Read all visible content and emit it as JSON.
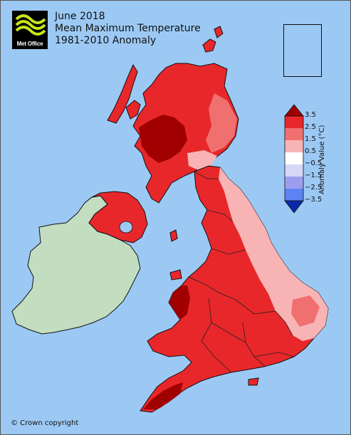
{
  "title": {
    "line1": "June 2018",
    "line2": "Mean Maximum Temperature",
    "line3": "1981-2010 Anomaly"
  },
  "logo": {
    "text": "Met Office",
    "icon": "met-office-wave-logo"
  },
  "legend": {
    "title": "Anomaly Value (°C)",
    "ticks": [
      "3.5",
      "2.5",
      "1.5",
      "0.5",
      "−0.5",
      "−1.5",
      "−2.5",
      "−3.5"
    ],
    "colors": [
      "#a00000",
      "#e8272b",
      "#f07070",
      "#f8b4b4",
      "#ffffff",
      "#d6d6f7",
      "#9d9df0",
      "#5c83f2",
      "#0a28a8"
    ]
  },
  "map": {
    "sea_color": "#9cc9f4",
    "ireland_color": "#c2ddc0",
    "region_colors": {
      "scotland_west": "#a00000",
      "scotland_central": "#e8272b",
      "scotland_east": "#f07070",
      "northern_ireland": "#e8272b",
      "northern_england": "#e8272b",
      "northeast_england": "#f8b4b4",
      "wales": "#e8272b",
      "west_wales_coast": "#a00000",
      "midlands": "#e8272b",
      "east_anglia": "#f8b4b4",
      "southern_england": "#e8272b",
      "southwest_england": "#e8272b",
      "cornwall": "#a00000"
    }
  },
  "copyright": "© Crown copyright"
}
